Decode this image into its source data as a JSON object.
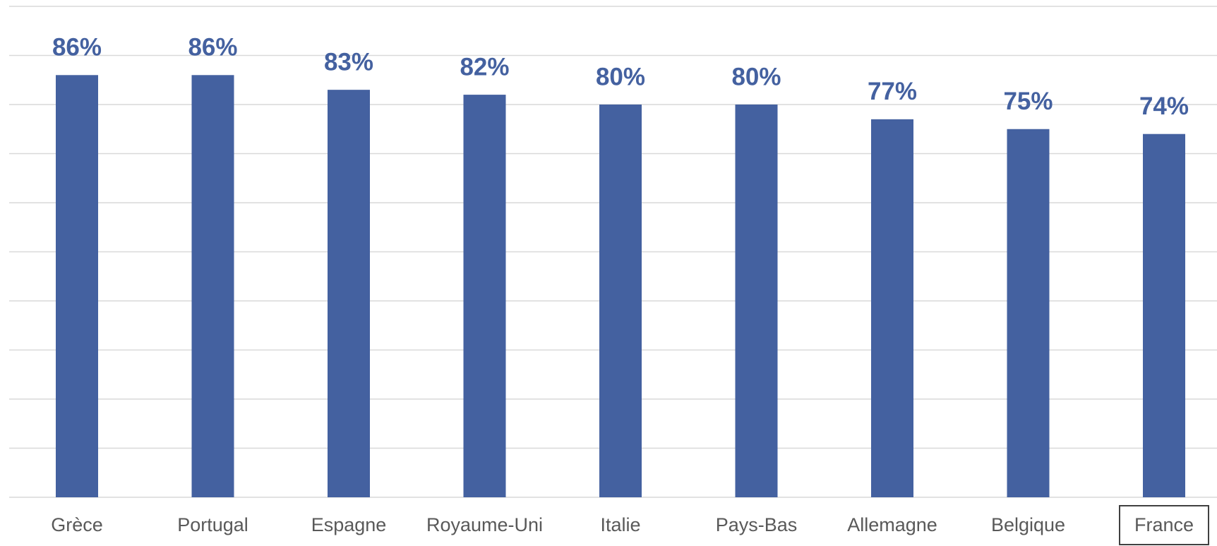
{
  "chart_data": {
    "type": "bar",
    "categories": [
      "Grèce",
      "Portugal",
      "Espagne",
      "Royaume-Uni",
      "Italie",
      "Pays-Bas",
      "Allemagne",
      "Belgique",
      "France"
    ],
    "values": [
      86,
      86,
      83,
      82,
      80,
      80,
      77,
      75,
      74
    ],
    "value_labels": [
      "86%",
      "86%",
      "83%",
      "82%",
      "80%",
      "80%",
      "77%",
      "75%",
      "74%"
    ],
    "color": "#4461a0",
    "ylim": [
      0,
      100
    ],
    "yticks": [
      0,
      10,
      20,
      30,
      40,
      50,
      60,
      70,
      80,
      90,
      100
    ],
    "grid": true
  }
}
